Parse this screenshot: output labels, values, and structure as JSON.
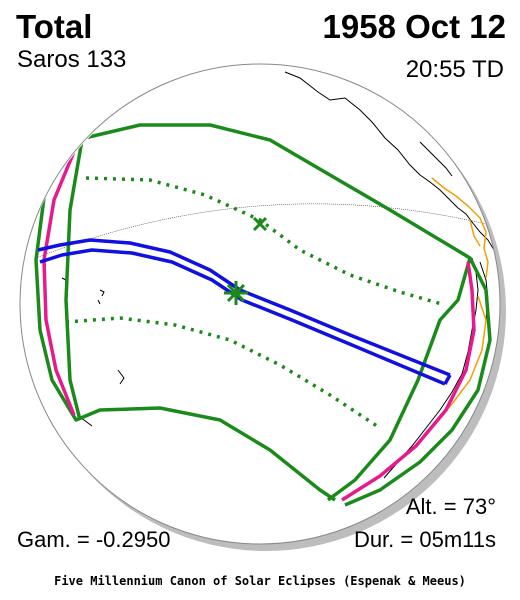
{
  "header": {
    "eclipse_type": "Total",
    "saros": "Saros 133",
    "date": "1958 Oct 12",
    "time": "20:55 TD"
  },
  "footer": {
    "altitude": "Alt. = 73°",
    "gamma": "Gam. = -0.2950",
    "duration": "Dur. = 05m11s",
    "credit": "Five Millennium Canon of Solar Eclipses (Espenak & Meeus)"
  },
  "colors": {
    "penumbra_limits": "#1a8a1a",
    "rise_set_curve": "#e8198c",
    "central_path": "#1010e0",
    "coastline": "#000000",
    "borders": "#f0a000",
    "globe_shadow": "#bbbbbb"
  },
  "icons": {
    "greatest_eclipse": "asterisk-marker",
    "subsolar_point": "x-marker"
  }
}
